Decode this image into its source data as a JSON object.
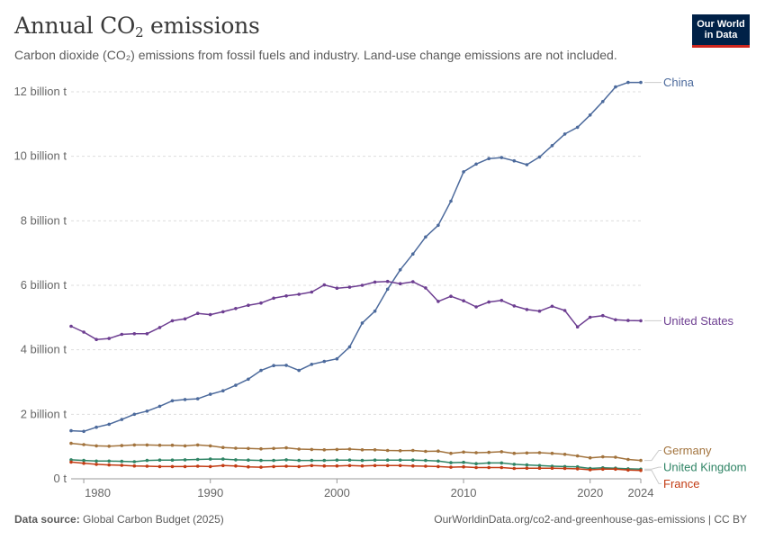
{
  "header": {
    "title_main": "Annual CO",
    "title_sub": "2",
    "title_rest": " emissions",
    "subtitle": "Carbon dioxide (CO₂) emissions from fossil fuels and industry. Land-use change emissions are not included.",
    "logo_line1": "Our World",
    "logo_line2": "in Data"
  },
  "footer": {
    "source_label": "Data source:",
    "source_value": " Global Carbon Budget (2025)",
    "url": "OurWorldinData.org/co2-and-greenhouse-gas-emissions | CC BY"
  },
  "chart_data": {
    "type": "line",
    "title": "Annual CO₂ emissions",
    "xlabel": "",
    "ylabel": "",
    "xlim": [
      1979,
      2024
    ],
    "ylim": [
      0,
      12.5
    ],
    "x_ticks": [
      1980,
      1990,
      2000,
      2010,
      2020,
      2024
    ],
    "y_ticks": [
      {
        "value": 0,
        "label": "0 t"
      },
      {
        "value": 2,
        "label": "2 billion t"
      },
      {
        "value": 4,
        "label": "4 billion t"
      },
      {
        "value": 6,
        "label": "6 billion t"
      },
      {
        "value": 8,
        "label": "8 billion t"
      },
      {
        "value": 10,
        "label": "10 billion t"
      },
      {
        "value": 12,
        "label": "12 billion t"
      }
    ],
    "grid": "horizontal dashed",
    "legend": "line-end labels",
    "x": [
      1979,
      1980,
      1981,
      1982,
      1983,
      1984,
      1985,
      1986,
      1987,
      1988,
      1989,
      1990,
      1991,
      1992,
      1993,
      1994,
      1995,
      1996,
      1997,
      1998,
      1999,
      2000,
      2001,
      2002,
      2003,
      2004,
      2005,
      2006,
      2007,
      2008,
      2009,
      2010,
      2011,
      2012,
      2013,
      2014,
      2015,
      2016,
      2017,
      2018,
      2019,
      2020,
      2021,
      2022,
      2023,
      2024
    ],
    "series": [
      {
        "name": "China",
        "color": "#4c6a9c",
        "values": [
          1.49,
          1.47,
          1.6,
          1.69,
          1.84,
          2.0,
          2.1,
          2.25,
          2.42,
          2.46,
          2.48,
          2.62,
          2.73,
          2.9,
          3.09,
          3.36,
          3.51,
          3.52,
          3.36,
          3.55,
          3.64,
          3.72,
          4.09,
          4.83,
          5.2,
          5.88,
          6.48,
          6.97,
          7.5,
          7.86,
          8.61,
          9.52,
          9.76,
          9.93,
          9.96,
          9.86,
          9.74,
          9.98,
          10.33,
          10.69,
          10.9,
          11.28,
          11.7,
          12.15,
          12.29,
          12.29
        ]
      },
      {
        "name": "United States",
        "color": "#6d3e91",
        "values": [
          4.73,
          4.55,
          4.32,
          4.35,
          4.48,
          4.5,
          4.5,
          4.69,
          4.9,
          4.96,
          5.13,
          5.09,
          5.18,
          5.28,
          5.38,
          5.45,
          5.6,
          5.67,
          5.72,
          5.79,
          6.01,
          5.91,
          5.94,
          6.0,
          6.1,
          6.12,
          6.05,
          6.11,
          5.92,
          5.5,
          5.66,
          5.52,
          5.33,
          5.48,
          5.53,
          5.36,
          5.25,
          5.2,
          5.35,
          5.22,
          4.71,
          5.01,
          5.06,
          4.93,
          4.91,
          4.9
        ]
      },
      {
        "name": "Germany",
        "color": "#a2733d",
        "values": [
          1.1,
          1.06,
          1.02,
          1.01,
          1.03,
          1.05,
          1.05,
          1.04,
          1.04,
          1.02,
          1.05,
          1.02,
          0.97,
          0.95,
          0.94,
          0.93,
          0.94,
          0.96,
          0.92,
          0.91,
          0.9,
          0.91,
          0.92,
          0.9,
          0.9,
          0.88,
          0.87,
          0.88,
          0.85,
          0.86,
          0.79,
          0.83,
          0.81,
          0.82,
          0.84,
          0.79,
          0.8,
          0.81,
          0.79,
          0.76,
          0.71,
          0.65,
          0.68,
          0.67,
          0.6,
          0.57
        ]
      },
      {
        "name": "United Kingdom",
        "color": "#2f8465",
        "values": [
          0.59,
          0.57,
          0.55,
          0.55,
          0.54,
          0.53,
          0.57,
          0.58,
          0.58,
          0.59,
          0.6,
          0.61,
          0.61,
          0.59,
          0.58,
          0.57,
          0.57,
          0.59,
          0.57,
          0.57,
          0.57,
          0.58,
          0.58,
          0.57,
          0.58,
          0.58,
          0.58,
          0.58,
          0.57,
          0.55,
          0.5,
          0.51,
          0.47,
          0.49,
          0.49,
          0.45,
          0.43,
          0.41,
          0.39,
          0.38,
          0.37,
          0.32,
          0.34,
          0.33,
          0.31,
          0.3
        ]
      },
      {
        "name": "France",
        "color": "#c23c14",
        "values": [
          0.52,
          0.48,
          0.45,
          0.43,
          0.42,
          0.4,
          0.39,
          0.38,
          0.38,
          0.38,
          0.39,
          0.38,
          0.41,
          0.4,
          0.37,
          0.36,
          0.38,
          0.39,
          0.38,
          0.41,
          0.4,
          0.4,
          0.41,
          0.4,
          0.41,
          0.41,
          0.41,
          0.4,
          0.39,
          0.38,
          0.36,
          0.37,
          0.35,
          0.35,
          0.35,
          0.32,
          0.33,
          0.33,
          0.33,
          0.32,
          0.31,
          0.28,
          0.3,
          0.3,
          0.27,
          0.26
        ]
      }
    ],
    "label_y": [
      12.29,
      4.9,
      0.88,
      0.36,
      -0.15
    ]
  }
}
